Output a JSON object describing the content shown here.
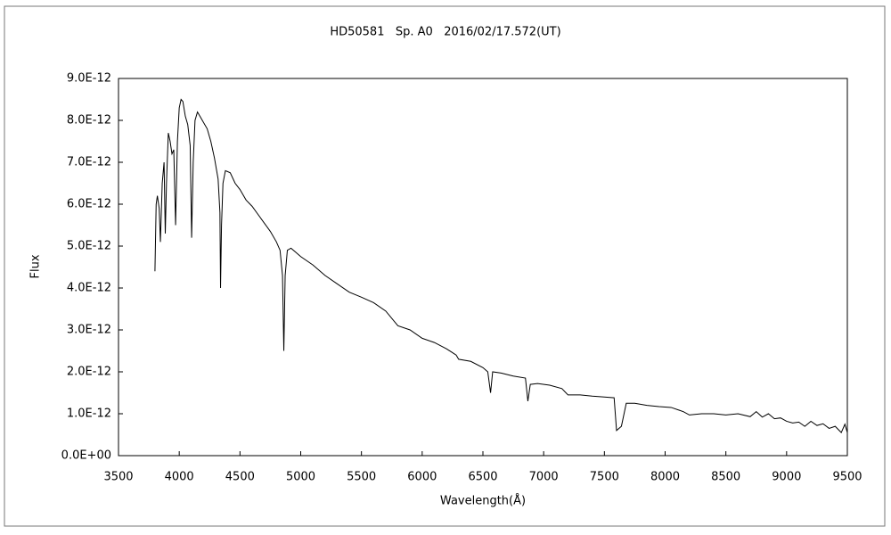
{
  "chart_data": {
    "type": "line",
    "title": "HD50581   Sp. A0   2016/02/17.572(UT)",
    "x_label": "Wavelength(Å)",
    "y_label": "Flux",
    "xlim": [
      3500,
      9500
    ],
    "xticks": [
      3500,
      4000,
      4500,
      5000,
      5500,
      6000,
      6500,
      7000,
      7500,
      8000,
      8500,
      9000,
      9500
    ],
    "ylim": [
      0,
      9e-12
    ],
    "yticks": [
      {
        "value": 0,
        "label": "0.0E+00"
      },
      {
        "value": 1e-12,
        "label": "1.0E-12"
      },
      {
        "value": 2e-12,
        "label": "2.0E-12"
      },
      {
        "value": 3e-12,
        "label": "3.0E-12"
      },
      {
        "value": 4e-12,
        "label": "4.0E-12"
      },
      {
        "value": 5e-12,
        "label": "5.0E-12"
      },
      {
        "value": 6e-12,
        "label": "6.0E-12"
      },
      {
        "value": 7e-12,
        "label": "7.0E-12"
      },
      {
        "value": 8e-12,
        "label": "8.0E-12"
      },
      {
        "value": 9e-12,
        "label": "9.0E-12"
      }
    ],
    "grid": false,
    "series": [
      {
        "color": "#000000",
        "x": [
          3800,
          3810,
          3820,
          3835,
          3845,
          3860,
          3875,
          3885,
          3895,
          3910,
          3925,
          3940,
          3955,
          3970,
          3985,
          4000,
          4015,
          4030,
          4050,
          4070,
          4090,
          4102,
          4115,
          4130,
          4150,
          4170,
          4200,
          4230,
          4260,
          4290,
          4320,
          4335,
          4340,
          4348,
          4360,
          4380,
          4420,
          4460,
          4500,
          4550,
          4600,
          4650,
          4700,
          4750,
          4800,
          4830,
          4850,
          4861,
          4872,
          4890,
          4920,
          4960,
          5000,
          5100,
          5200,
          5300,
          5400,
          5500,
          5600,
          5700,
          5800,
          5900,
          6000,
          6100,
          6200,
          6280,
          6300,
          6400,
          6500,
          6540,
          6563,
          6580,
          6650,
          6750,
          6850,
          6870,
          6890,
          6950,
          7050,
          7150,
          7200,
          7300,
          7400,
          7500,
          7580,
          7600,
          7640,
          7680,
          7750,
          7850,
          7950,
          8050,
          8150,
          8200,
          8300,
          8400,
          8500,
          8600,
          8700,
          8750,
          8800,
          8850,
          8900,
          8950,
          9000,
          9050,
          9100,
          9150,
          9200,
          9250,
          9300,
          9350,
          9400,
          9450,
          9480,
          9500
        ],
        "values": [
          4.4e-12,
          6e-12,
          6.2e-12,
          5.9e-12,
          5.1e-12,
          6.5e-12,
          7e-12,
          5.3e-12,
          6.5e-12,
          7.7e-12,
          7.5e-12,
          7.2e-12,
          7.3e-12,
          5.5e-12,
          7.5e-12,
          8.3e-12,
          8.5e-12,
          8.45e-12,
          8.1e-12,
          7.9e-12,
          7.4e-12,
          5.2e-12,
          7e-12,
          8e-12,
          8.2e-12,
          8.1e-12,
          7.95e-12,
          7.8e-12,
          7.5e-12,
          7.1e-12,
          6.6e-12,
          5.8e-12,
          4e-12,
          5.5e-12,
          6.5e-12,
          6.8e-12,
          6.75e-12,
          6.5e-12,
          6.35e-12,
          6.1e-12,
          5.95e-12,
          5.75e-12,
          5.55e-12,
          5.35e-12,
          5.1e-12,
          4.9e-12,
          4.3e-12,
          2.5e-12,
          4.3e-12,
          4.9e-12,
          4.95e-12,
          4.85e-12,
          4.75e-12,
          4.55e-12,
          4.3e-12,
          4.1e-12,
          3.9e-12,
          3.78e-12,
          3.65e-12,
          3.45e-12,
          3.1e-12,
          3e-12,
          2.8e-12,
          2.7e-12,
          2.55e-12,
          2.4e-12,
          2.3e-12,
          2.25e-12,
          2.1e-12,
          2e-12,
          1.5e-12,
          2e-12,
          1.97e-12,
          1.9e-12,
          1.85e-12,
          1.3e-12,
          1.7e-12,
          1.72e-12,
          1.68e-12,
          1.6e-12,
          1.45e-12,
          1.45e-12,
          1.42e-12,
          1.4e-12,
          1.38e-12,
          6e-13,
          7e-13,
          1.25e-12,
          1.25e-12,
          1.2e-12,
          1.17e-12,
          1.15e-12,
          1.05e-12,
          9.7e-13,
          1e-12,
          1e-12,
          9.7e-13,
          1e-12,
          9.3e-13,
          1.05e-12,
          9.2e-13,
          1e-12,
          8.8e-13,
          9e-13,
          8.2e-13,
          7.8e-13,
          8e-13,
          7e-13,
          8.2e-13,
          7.2e-13,
          7.6e-13,
          6.5e-13,
          7e-13,
          5.5e-13,
          7.5e-13,
          5.5e-13
        ]
      }
    ]
  }
}
